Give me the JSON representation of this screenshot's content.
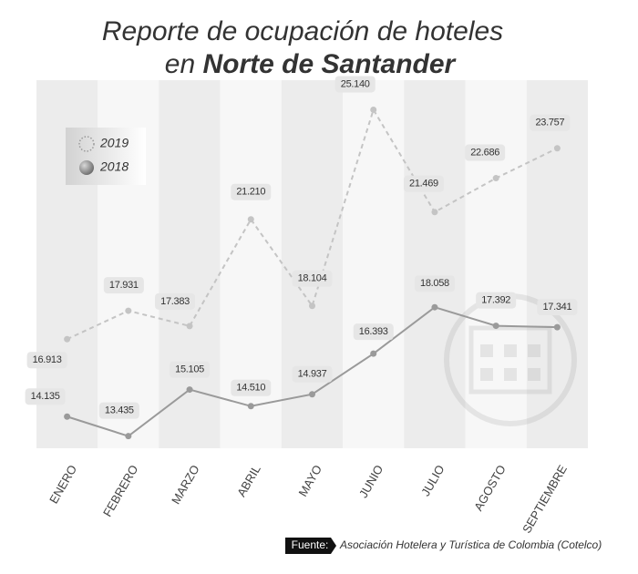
{
  "chart_data": {
    "type": "line",
    "title": [
      "Reporte de ocupación de hoteles",
      "en",
      "Norte de Santander"
    ],
    "categories": [
      "ENERO",
      "FEBRERO",
      "MARZO",
      "ABRIL",
      "MAYO",
      "JUNIO",
      "JULIO",
      "AGOSTO",
      "SEPTIEMBRE"
    ],
    "series": [
      {
        "name": "2019",
        "color": "#c4c4c4",
        "dashed": true,
        "values": [
          16913,
          17931,
          17383,
          21210,
          18104,
          25140,
          21469,
          22686,
          23757
        ],
        "value_labels": [
          "16.913",
          "17.931",
          "17.383",
          "21.210",
          "18.104",
          "25.140",
          "21.469",
          "22.686",
          "23.757"
        ]
      },
      {
        "name": "2018",
        "color": "#9a9a9a",
        "dashed": false,
        "values": [
          14135,
          13435,
          15105,
          14510,
          14937,
          16393,
          18058,
          17392,
          17341
        ],
        "value_labels": [
          "14.135",
          "13.435",
          "15.105",
          "14.510",
          "14.937",
          "16.393",
          "18.058",
          "17.392",
          "17.341"
        ]
      }
    ],
    "ylim": [
      13000,
      26200
    ],
    "legend": "top-left",
    "source": {
      "label": "Fuente:",
      "text": "Asociación Hotelera y Turística de Colombia (Cotelco)"
    }
  }
}
